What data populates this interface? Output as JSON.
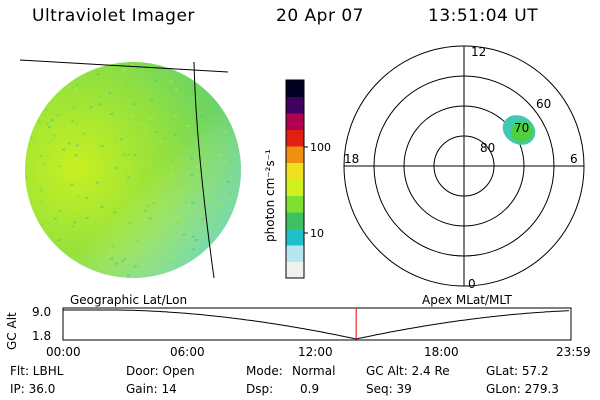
{
  "header": {
    "title": "Ultraviolet Imager",
    "date": "20 Apr 07",
    "time": "13:51:04 UT"
  },
  "colorbar": {
    "label": "photon cm⁻²s⁻¹",
    "ticks": [
      {
        "value": 100,
        "label": "100"
      },
      {
        "value": 10,
        "label": "10"
      }
    ],
    "range": [
      3,
      600
    ],
    "scale": "log",
    "colors": [
      "#f0f0f0",
      "#b8e6f0",
      "#20c0c8",
      "#40c060",
      "#80e030",
      "#d0f020",
      "#f0e020",
      "#f09010",
      "#e02010",
      "#b00050",
      "#400060",
      "#000020"
    ]
  },
  "polar": {
    "hour_labels": [
      {
        "hour": "12",
        "pos": "top"
      },
      {
        "hour": "6",
        "pos": "right"
      },
      {
        "hour": "0",
        "pos": "bottom"
      },
      {
        "hour": "18",
        "pos": "left"
      }
    ],
    "lat_labels": [
      "60",
      "70",
      "80"
    ]
  },
  "timeline": {
    "left_label": "Geographic Lat/Lon",
    "right_label": "Apex MLat/MLT",
    "axis_label": "GC Alt",
    "y_ticks": [
      "9.0",
      "1.8"
    ],
    "x_ticks": [
      "00:00",
      "06:00",
      "12:00",
      "18:00",
      "23:59"
    ],
    "current_time_hours": 13.85,
    "marker_color": "#e00000"
  },
  "status": {
    "flt": "Flt: LBHL",
    "ip": "IP: 36.0",
    "door": "Door: Open",
    "gain": "Gain: 14",
    "mode_label": "Mode:",
    "mode_value": "Normal",
    "dsp_label": "Dsp:",
    "dsp_value": "0.9",
    "gc_alt": "GC Alt: 2.4 Re",
    "seq": "Seq: 39",
    "glat": "GLat:  57.2",
    "glon": "GLon: 279.3"
  }
}
